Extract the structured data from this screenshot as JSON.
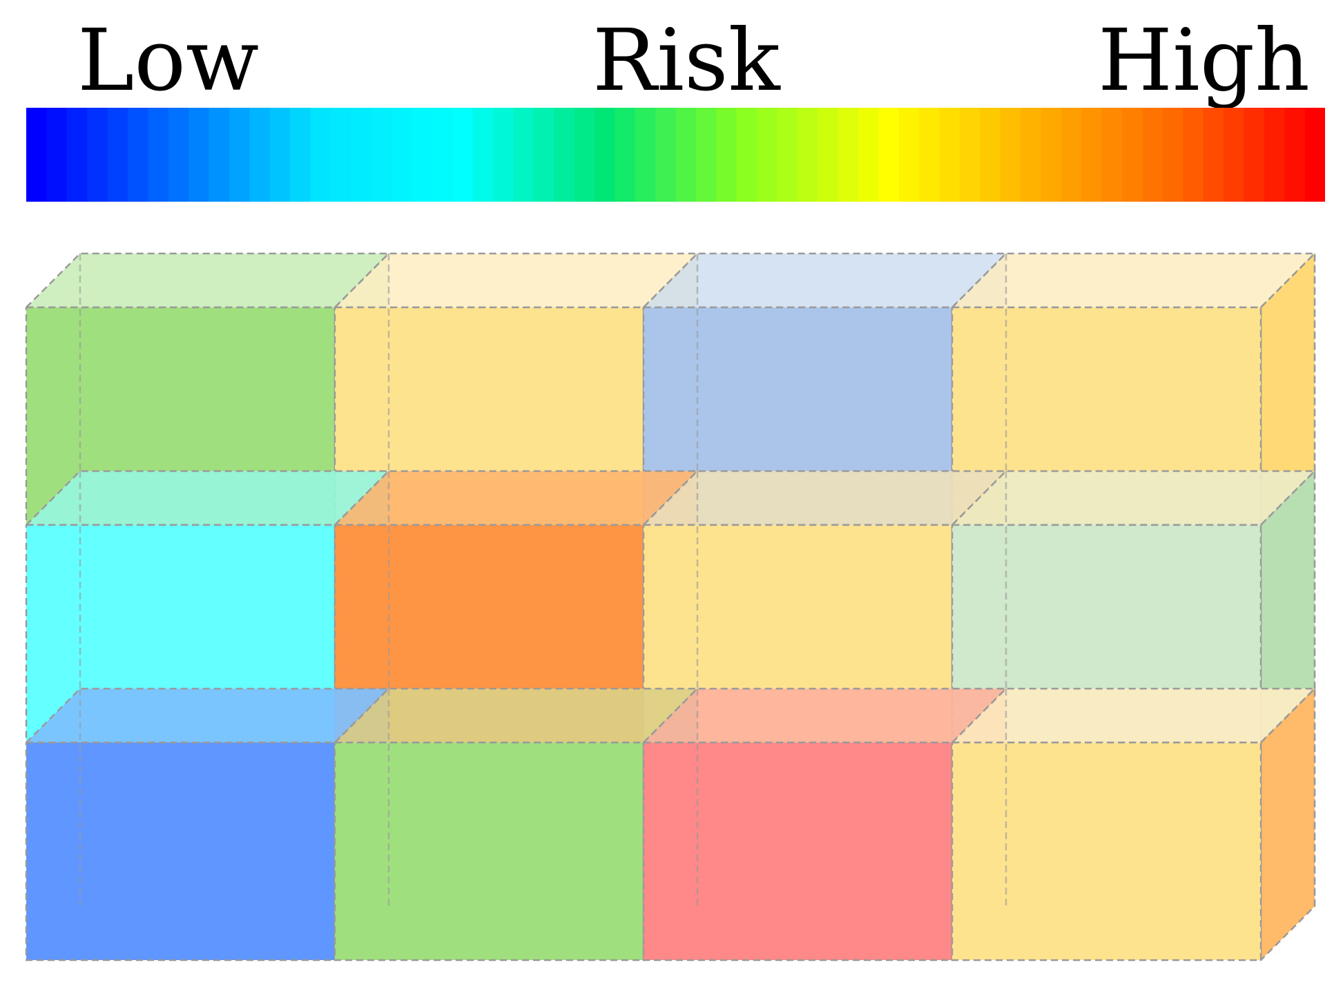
{
  "legend": {
    "low_label": "Low",
    "title": "Risk",
    "high_label": "High",
    "gradient_stops": [
      "#0000ff",
      "#0072ff",
      "#00e5ff",
      "#00ffff",
      "#00e676",
      "#8bff1f",
      "#ffff00",
      "#ffb300",
      "#ff6a00",
      "#ff0000"
    ]
  },
  "grid": {
    "rows": 3,
    "columns": 4,
    "cells": [
      [
        {
          "front": "#a0df7e",
          "side": "#8fcf6e",
          "top": "#cbeebb"
        },
        {
          "front": "#fee38f",
          "side": "#f5d060",
          "top": "#feefc6"
        },
        {
          "front": "#abc5ea",
          "side": "#aab6bf",
          "top": "#d3e1f1"
        },
        {
          "front": "#fee38f",
          "side": "#fed566",
          "top": "#fdeec6"
        }
      ],
      [
        {
          "front": "#64ffff",
          "side": "#55eeee",
          "top": "#96f5dc"
        },
        {
          "front": "#fe9545",
          "side": "#e79445",
          "top": "#ffb670"
        },
        {
          "front": "#fee38f",
          "side": "#ffc050",
          "top": "#ece0bc"
        },
        {
          "front": "#d0e8cb",
          "side": "#b0dca8",
          "top": "#ecebc6"
        }
      ],
      [
        {
          "front": "#5f96ff",
          "side": "#5580ee",
          "top": "#7dc0ff"
        },
        {
          "front": "#a0df7e",
          "side": "#58b284",
          "top": "#dccf86"
        },
        {
          "front": "#ff8888",
          "side": "#ff7555",
          "top": "#feb39d"
        },
        {
          "front": "#fee38f",
          "side": "#ffb25a",
          "top": "#fcecc2"
        }
      ]
    ]
  }
}
